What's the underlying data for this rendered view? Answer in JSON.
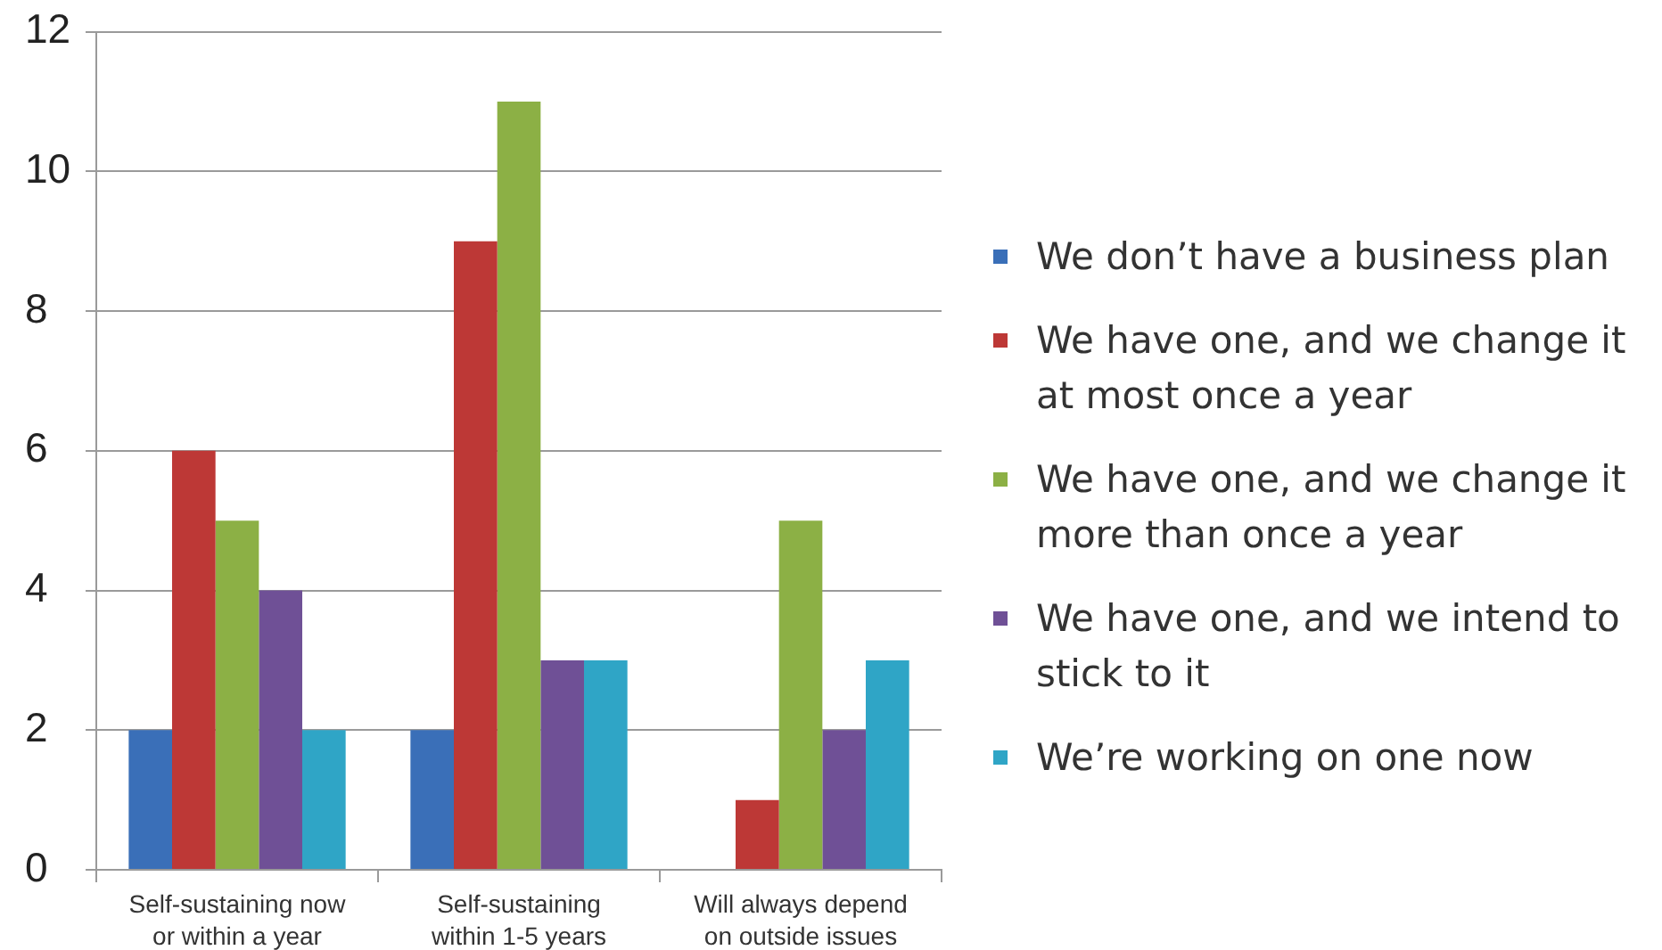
{
  "chart_data": {
    "type": "bar",
    "categories": [
      "Self-sustaining now or within a year",
      "Self-sustaining within 1-5 years",
      "Will always depend on outside issues"
    ],
    "series": [
      {
        "name": "We don’t have a business plan",
        "color": "#3a6fb8",
        "values": [
          2,
          2,
          0
        ]
      },
      {
        "name": "We have one, and we change it at most once a year",
        "color": "#bd3836",
        "values": [
          6,
          9,
          1
        ]
      },
      {
        "name": "We have one, and we change it more than once a year",
        "color": "#8cb045",
        "values": [
          5,
          11,
          5
        ]
      },
      {
        "name": "We have one, and we intend to stick to it",
        "color": "#6f5096",
        "values": [
          4,
          3,
          2
        ]
      },
      {
        "name": "We’re working on one now",
        "color": "#2fa5c6",
        "values": [
          2,
          3,
          3
        ]
      }
    ],
    "ylim": [
      0,
      12
    ],
    "yticks": [
      0,
      2,
      4,
      6,
      8,
      10,
      12
    ],
    "grid": "y",
    "legend": "right"
  }
}
